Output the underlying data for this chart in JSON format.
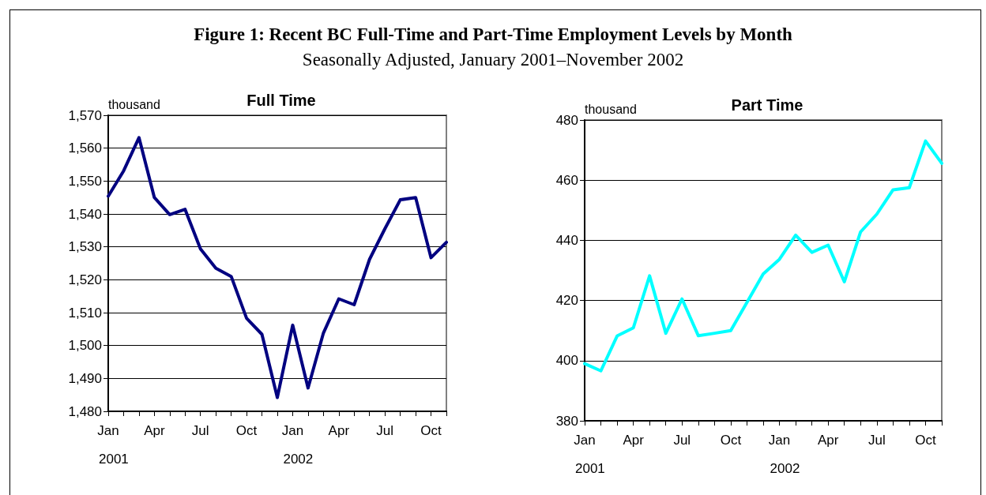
{
  "chart_data": [
    {
      "type": "line",
      "title": "Full Time",
      "ylabel": "thousand",
      "categories": [
        "Jan",
        null,
        null,
        "Apr",
        null,
        null,
        "Jul",
        null,
        null,
        "Oct",
        null,
        null,
        "Jan",
        null,
        null,
        "Apr",
        null,
        null,
        "Jul",
        null,
        null,
        "Oct",
        null
      ],
      "series": [
        {
          "color": "#000080",
          "values": [
            1545.4,
            1553.1,
            1563.2,
            1545.0,
            1539.8,
            1541.4,
            1529.4,
            1523.5,
            1521.0,
            1508.3,
            1503.4,
            1484.2,
            1506.2,
            1487.1,
            1503.8,
            1514.2,
            1512.4,
            1526.2,
            1535.5,
            1544.3,
            1545.0,
            1526.7,
            1531.4
          ]
        }
      ],
      "ylim": [
        1480,
        1570
      ],
      "yticks": [
        {
          "value": 1480,
          "label": "1,480"
        },
        {
          "value": 1490,
          "label": "1,490"
        },
        {
          "value": 1500,
          "label": "1,500"
        },
        {
          "value": 1510,
          "label": "1,510"
        },
        {
          "value": 1520,
          "label": "1,520"
        },
        {
          "value": 1530,
          "label": "1,530"
        },
        {
          "value": 1540,
          "label": "1,540"
        },
        {
          "value": 1550,
          "label": "1,550"
        },
        {
          "value": 1560,
          "label": "1,560"
        },
        {
          "value": 1570,
          "label": "1,570"
        }
      ],
      "grid": "y",
      "marker": "none",
      "line_style": "solid",
      "annotations": [
        "Figure 1:  Recent BC Full-Time and Part-Time Employment Levels by Month",
        "Seasonally Adjusted, January 2001–November 2002",
        "2001",
        "2002"
      ]
    },
    {
      "type": "line",
      "title": "Part Time",
      "ylabel": "thousand",
      "categories": [
        "Jan",
        null,
        null,
        "Apr",
        null,
        null,
        "Jul",
        null,
        null,
        "Oct",
        null,
        null,
        "Jan",
        null,
        null,
        "Apr",
        null,
        null,
        "Jul",
        null,
        null,
        "Oct",
        null
      ],
      "series": [
        {
          "color": "#00ffff",
          "values": [
            399.0,
            396.6,
            408.2,
            410.9,
            428.2,
            409.1,
            420.5,
            408.3,
            409.1,
            410.0,
            419.4,
            428.8,
            433.7,
            441.7,
            436.0,
            438.4,
            426.2,
            442.8,
            448.7,
            456.8,
            457.5,
            473.0,
            465.6
          ]
        }
      ],
      "ylim": [
        380,
        480
      ],
      "yticks": [
        380,
        400,
        420,
        440,
        460,
        480
      ],
      "grid": "y",
      "marker": "none",
      "line_style": "solid",
      "annotations": [
        "2001",
        "2002"
      ]
    }
  ]
}
